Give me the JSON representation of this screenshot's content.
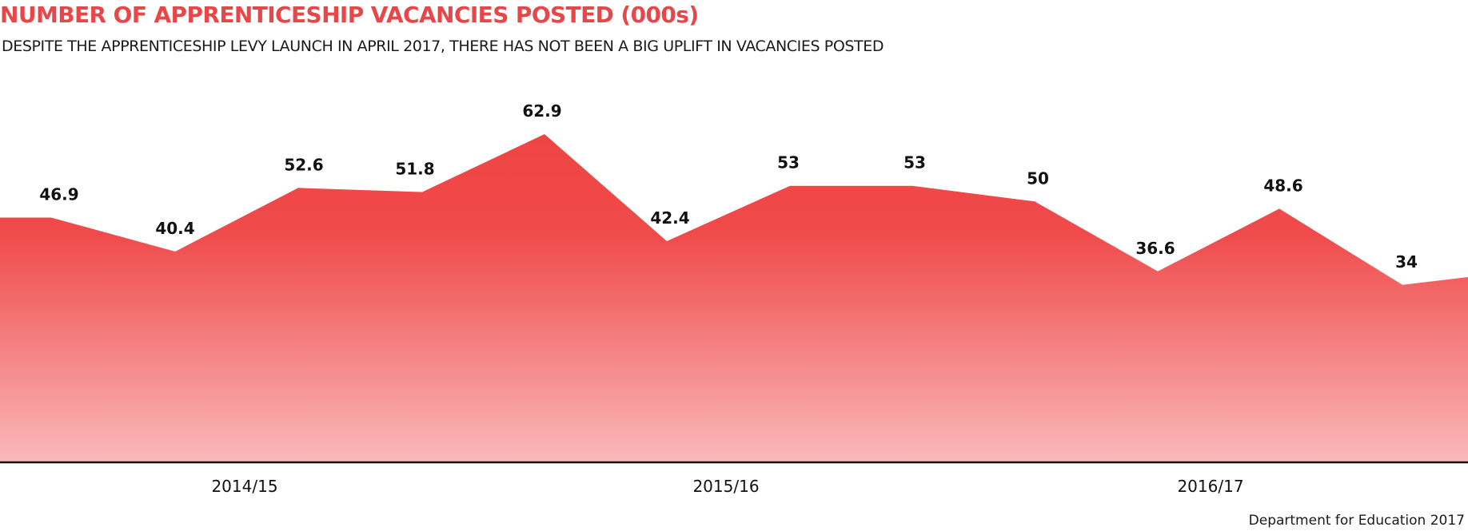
{
  "chart_data": {
    "type": "area",
    "title": "NUMBER OF APPRENTICESHIP VACANCIES POSTED (000s)",
    "subtitle": "DESPITE THE APPRENTICESHIP LEVY LAUNCH IN APRIL 2017, THERE HAS NOT BEEN A BIG UPLIFT IN VACANCIES POSTED",
    "source": "Department for Education 2017",
    "periods": [
      "2014/15",
      "2015/16",
      "2016/17"
    ],
    "values": [
      46.9,
      46.9,
      40.4,
      52.6,
      51.8,
      62.9,
      42.4,
      53,
      53,
      50,
      36.6,
      48.6,
      34,
      35.5
    ],
    "labels": [
      "",
      "46.9",
      "40.4",
      "52.6",
      "51.8",
      "62.9",
      "42.4",
      "53",
      "53",
      "50",
      "36.6",
      "48.6",
      "34",
      ""
    ],
    "ylim": [
      0,
      70
    ],
    "grid": "vertical",
    "legend": "none",
    "colors": {
      "title": "#e8474a",
      "fill_top": "#ef4848",
      "fill_bottom": "#f9b8b9",
      "text": "#111111"
    }
  }
}
